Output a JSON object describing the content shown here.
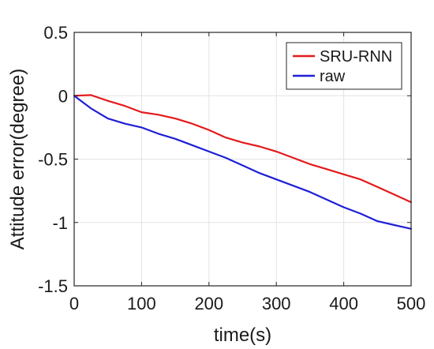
{
  "chart_data": {
    "type": "line",
    "xlabel": "time(s)",
    "ylabel": "Attitude error(degree)",
    "xlim": [
      0,
      500
    ],
    "ylim": [
      -1.5,
      0.5
    ],
    "xticks": [
      0,
      100,
      200,
      300,
      400,
      500
    ],
    "xtick_labels": [
      "0",
      "100",
      "200",
      "300",
      "400",
      "500"
    ],
    "yticks": [
      0.5,
      0,
      -0.5,
      -1,
      -1.5
    ],
    "ytick_labels": [
      "0.5",
      "0",
      "-0.5",
      "-1",
      "-1.5"
    ],
    "grid": true,
    "legend_position": "top-right",
    "x": [
      0,
      25,
      50,
      75,
      100,
      125,
      150,
      175,
      200,
      225,
      250,
      275,
      300,
      325,
      350,
      375,
      400,
      425,
      450,
      475,
      500
    ],
    "series": [
      {
        "name": "SRU-RNN",
        "color": "#e41a1c",
        "values": [
          0,
          0.005,
          -0.04,
          -0.08,
          -0.13,
          -0.15,
          -0.18,
          -0.22,
          -0.27,
          -0.33,
          -0.37,
          -0.4,
          -0.44,
          -0.49,
          -0.54,
          -0.58,
          -0.62,
          -0.66,
          -0.72,
          -0.78,
          -0.84
        ]
      },
      {
        "name": "raw",
        "color": "#1f1fd6",
        "values": [
          0,
          -0.1,
          -0.18,
          -0.22,
          -0.25,
          -0.3,
          -0.34,
          -0.39,
          -0.44,
          -0.49,
          -0.55,
          -0.61,
          -0.66,
          -0.71,
          -0.76,
          -0.82,
          -0.88,
          -0.93,
          -0.99,
          -1.02,
          -1.05
        ]
      }
    ]
  }
}
